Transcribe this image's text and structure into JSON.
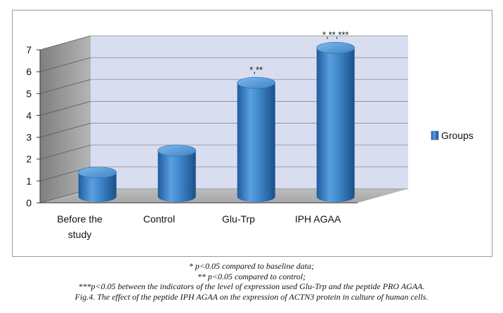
{
  "chart_data": {
    "type": "bar",
    "categories": [
      "Before the study",
      "Control",
      "Glu-Trp",
      "IPH AGAA"
    ],
    "category_lines": [
      [
        "Before the",
        "study"
      ],
      [
        "Control"
      ],
      [
        "Glu-Trp"
      ],
      [
        "IPH AGAA"
      ]
    ],
    "series": [
      {
        "name": "Groups",
        "values": [
          1.1,
          2.1,
          5.2,
          6.8
        ]
      }
    ],
    "annotations": [
      "",
      "",
      "*,**",
      "*,**,***"
    ],
    "ylim": [
      0,
      7
    ],
    "yticks": [
      "0",
      "1",
      "2",
      "3",
      "4",
      "5",
      "6",
      "7"
    ],
    "xlabel": "",
    "ylabel": "",
    "grid": true,
    "legend_position": "right",
    "bar_color": "#3d85c6",
    "style": "3d-cylinder"
  },
  "caption": {
    "lines": [
      "* p<0.05 compared to baseline data;",
      "** p<0.05 compared to control;",
      "***p<0.05 between the indicators of the level of expression used Glu-Trp and the peptide PRO AGAA.",
      "Fig.4. The effect of the peptide IPH AGAA on the expression of ACTN3 protein in culture of human cells."
    ]
  }
}
